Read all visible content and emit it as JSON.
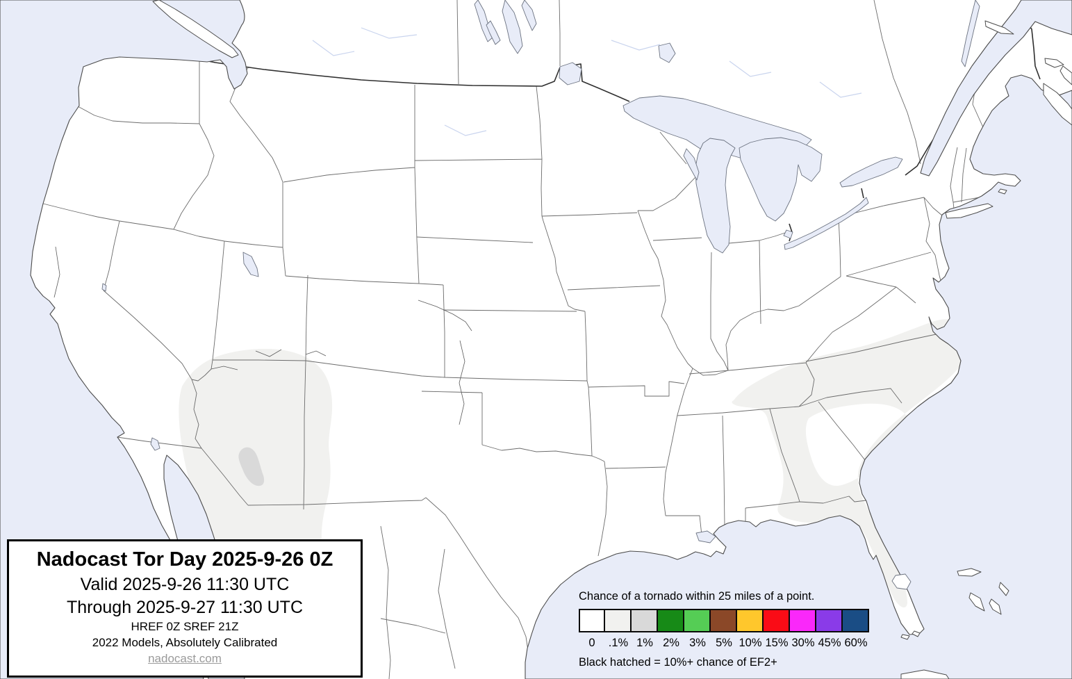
{
  "title_box": {
    "title": "Nadocast Tor Day 2025-9-26 0Z",
    "valid": "Valid 2025-9-26 11:30 UTC",
    "through": "Through 2025-9-27 11:30 UTC",
    "models": "HREF 0Z SREF 21Z",
    "calibration": "2022 Models, Absolutely Calibrated",
    "link": "nadocast.com"
  },
  "legend": {
    "heading": "Chance of a tornado within 25 miles of a point.",
    "note": "Black hatched = 10%+ chance of EF2+",
    "bins": [
      {
        "label": "0",
        "color": "#ffffff"
      },
      {
        "label": ".1%",
        "color": "#f1f1ef"
      },
      {
        "label": "1%",
        "color": "#d9d9d9"
      },
      {
        "label": "2%",
        "color": "#178a17"
      },
      {
        "label": "3%",
        "color": "#55cd55"
      },
      {
        "label": "5%",
        "color": "#8b4828"
      },
      {
        "label": "10%",
        "color": "#ffc72c"
      },
      {
        "label": "15%",
        "color": "#fa0c16"
      },
      {
        "label": "30%",
        "color": "#fa28fa"
      },
      {
        "label": "45%",
        "color": "#8a3be8"
      },
      {
        "label": "60%",
        "color": "#1a4d85"
      }
    ]
  },
  "map": {
    "colors": {
      "water": "#e8ecf8",
      "land": "#ffffff",
      "contour_point1pct": "#f1f1ef",
      "contour_1pct": "#d9d9d9",
      "coastline": "#4b4b4b",
      "state_border": "#6b6b6b",
      "intl_border": "#2f2f2f"
    }
  }
}
